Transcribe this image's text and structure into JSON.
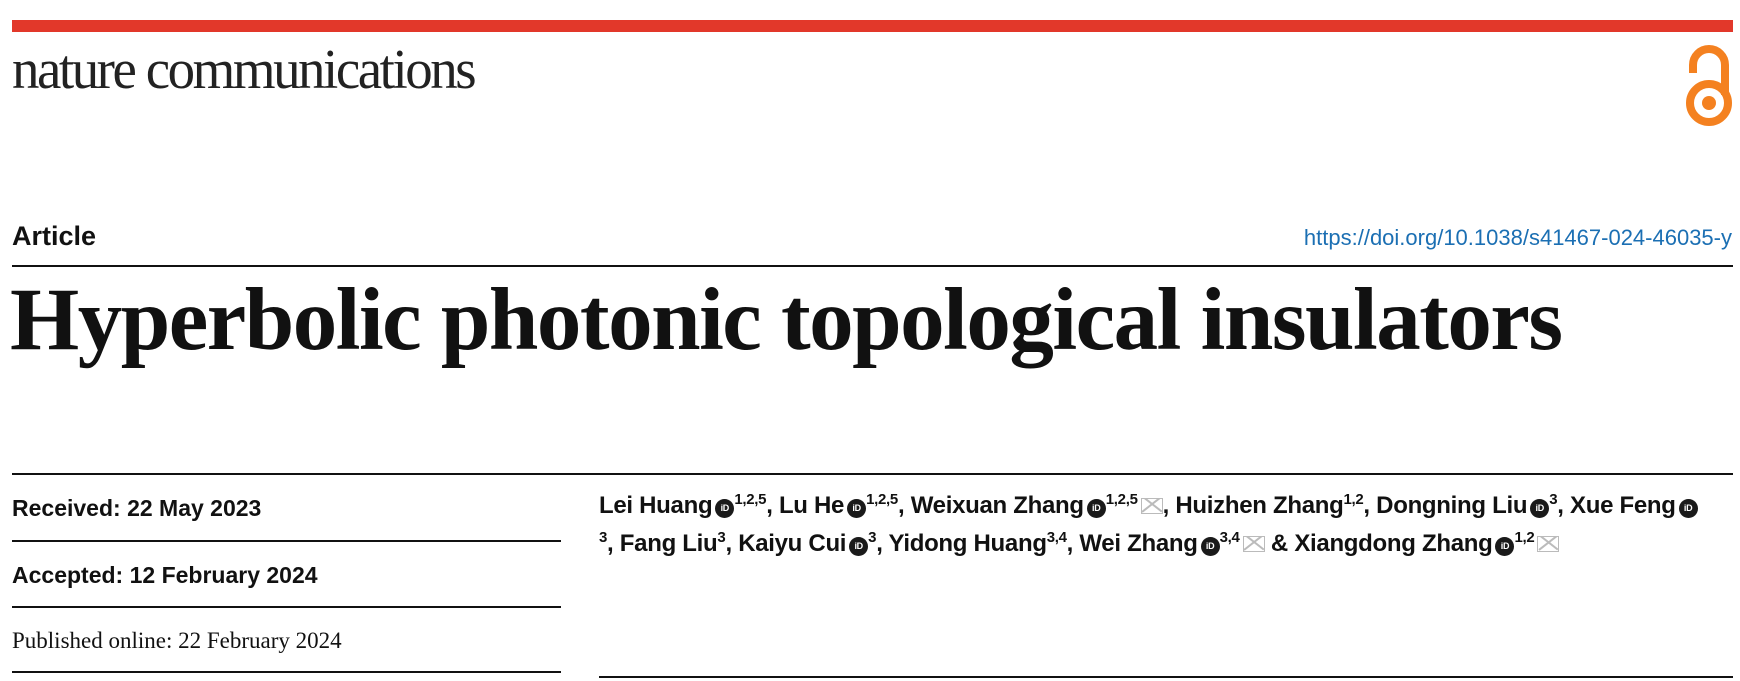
{
  "journal": {
    "name": "nature communications",
    "brand_color": "#e2382a",
    "open_access_icon": "open-access-lock-icon",
    "open_access_color": "#f48120"
  },
  "article": {
    "type": "Article",
    "doi": "https://doi.org/10.1038/s41467-024-46035-y",
    "doi_color": "#1b6fb3",
    "title": "Hyperbolic photonic topological insulators"
  },
  "dates": {
    "received_label": "Received:",
    "received": "22 May 2023",
    "accepted_label": "Accepted:",
    "accepted": "12 February 2024",
    "published_label": "Published online:",
    "published": "22 February 2024"
  },
  "authors": [
    {
      "name": "Lei Huang",
      "orcid": true,
      "aff": "1,2,5",
      "corresponding": false,
      "sep": ", "
    },
    {
      "name": "Lu He",
      "orcid": true,
      "aff": "1,2,5",
      "corresponding": false,
      "sep": ", "
    },
    {
      "name": "Weixuan Zhang",
      "orcid": true,
      "aff": "1,2,5",
      "corresponding": true,
      "sep": ", "
    },
    {
      "name": "Huizhen Zhang",
      "orcid": false,
      "aff": "1,2",
      "corresponding": false,
      "sep": ", "
    },
    {
      "name": "Dongning Liu",
      "orcid": true,
      "aff": "3",
      "corresponding": false,
      "sep": ", "
    },
    {
      "name": "Xue Feng",
      "orcid": true,
      "aff": "3",
      "corresponding": false,
      "sep": ", "
    },
    {
      "name": "Fang Liu",
      "orcid": false,
      "aff": "3",
      "corresponding": false,
      "sep": ", "
    },
    {
      "name": "Kaiyu Cui",
      "orcid": true,
      "aff": "3",
      "corresponding": false,
      "sep": ", "
    },
    {
      "name": "Yidong Huang",
      "orcid": false,
      "aff": "3,4",
      "corresponding": false,
      "sep": ", "
    },
    {
      "name": "Wei Zhang",
      "orcid": true,
      "aff": "3,4",
      "corresponding": true,
      "sep": " & "
    },
    {
      "name": "Xiangdong Zhang",
      "orcid": true,
      "aff": "1,2",
      "corresponding": true,
      "sep": ""
    }
  ],
  "orcid_label": "iD"
}
